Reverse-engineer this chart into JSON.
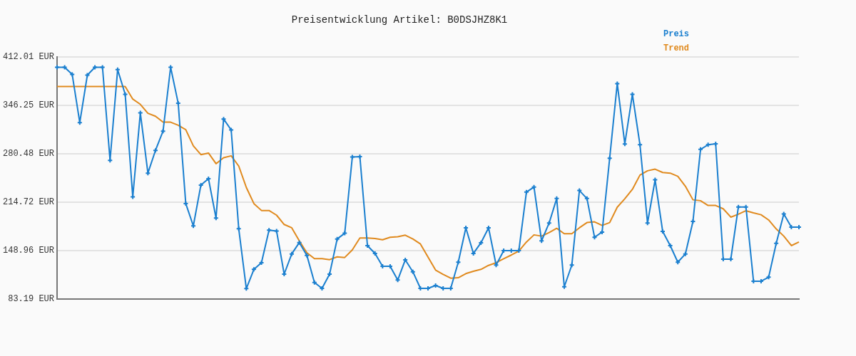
{
  "chart_data": {
    "type": "line",
    "title": "Preisentwicklung Artikel: B0DSJHZ8K1",
    "categories": [
      null,
      null,
      null,
      null,
      null,
      null,
      null,
      null,
      null,
      null,
      null,
      null,
      null,
      null,
      null,
      null,
      null,
      null,
      null,
      null,
      null,
      null,
      null,
      null,
      null,
      null,
      null,
      null,
      null,
      null,
      null,
      null,
      null,
      null,
      null,
      null,
      null,
      null,
      null,
      null,
      null,
      null,
      null,
      null,
      null,
      null,
      null,
      null,
      null,
      null,
      null,
      null,
      null,
      null,
      null,
      null,
      null,
      null,
      null,
      null,
      null,
      null,
      null,
      null,
      null,
      null,
      null,
      null,
      null,
      null,
      null,
      null,
      null,
      null,
      null,
      null,
      null,
      null,
      null,
      null,
      null,
      null,
      null,
      null,
      null,
      null,
      null,
      null,
      null,
      null,
      null,
      null,
      null,
      null,
      null,
      null,
      null,
      null,
      null
    ],
    "series": [
      {
        "name": "Preis",
        "color": "#1a7fcf",
        "marker": "cross",
        "values": [
          397.8,
          397.8,
          388.1,
          322.7,
          387.2,
          397.8,
          397.8,
          271.5,
          394.6,
          361.0,
          221.8,
          335.9,
          254.1,
          285.0,
          311.1,
          397.8,
          349.1,
          212.8,
          182.5,
          237.9,
          246.6,
          193.1,
          327.6,
          312.7,
          178.6,
          97.4,
          123.5,
          132.5,
          176.7,
          175.4,
          117.0,
          144.4,
          159.9,
          142.5,
          105.7,
          97.7,
          117.0,
          164.7,
          172.5,
          275.9,
          276.6,
          155.7,
          145.1,
          127.7,
          127.7,
          109.0,
          136.4,
          120.2,
          97.7,
          97.7,
          101.6,
          97.7,
          97.7,
          133.2,
          179.9,
          145.1,
          159.6,
          179.9,
          129.3,
          148.9,
          148.9,
          148.9,
          228.3,
          235.3,
          162.2,
          186.4,
          219.6,
          99.9,
          129.3,
          230.5,
          219.6,
          167.0,
          174.1,
          274.4,
          375.6,
          293.7,
          361.0,
          292.7,
          186.4,
          245.0,
          175.1,
          155.7,
          133.2,
          144.4,
          188.6,
          286.3,
          292.7,
          294.0,
          137.3,
          137.3,
          208.2,
          208.2,
          107.4,
          107.4,
          112.9,
          158.9,
          198.6,
          180.9,
          180.9
        ]
      },
      {
        "name": "Trend",
        "color": "#e08a1e",
        "marker": "none",
        "values": [
          371.7,
          371.7,
          371.7,
          371.7,
          371.7,
          371.7,
          371.7,
          371.7,
          371.7,
          371.7,
          354.6,
          347.5,
          335.3,
          331.4,
          323.3,
          323.3,
          319.2,
          313.1,
          291.1,
          279.2,
          281.4,
          266.9,
          275.0,
          277.6,
          263.7,
          234.7,
          212.8,
          203.4,
          203.4,
          197.0,
          184.4,
          179.9,
          162.2,
          146.0,
          138.0,
          138.0,
          136.7,
          140.5,
          139.6,
          149.9,
          166.1,
          166.1,
          165.4,
          163.7,
          167.0,
          167.7,
          169.9,
          164.7,
          157.9,
          140.2,
          122.5,
          116.7,
          111.5,
          112.1,
          117.7,
          120.9,
          123.5,
          128.9,
          132.5,
          138.0,
          142.9,
          148.3,
          160.6,
          170.3,
          168.6,
          173.4,
          179.2,
          171.9,
          171.9,
          179.9,
          187.0,
          188.0,
          183.1,
          187.0,
          207.9,
          219.3,
          232.1,
          251.5,
          257.3,
          259.5,
          255.0,
          254.1,
          249.8,
          236.3,
          217.9,
          216.7,
          210.2,
          210.2,
          205.7,
          194.4,
          198.3,
          203.1,
          200.2,
          197.6,
          190.5,
          178.3,
          168.6,
          155.7,
          160.6
        ]
      }
    ],
    "ylim": [
      83.19,
      412.01
    ],
    "yticks": [
      {
        "value": 83.19,
        "label": "83.19 EUR"
      },
      {
        "value": 148.96,
        "label": "148.96 EUR"
      },
      {
        "value": 214.72,
        "label": "214.72 EUR"
      },
      {
        "value": 280.48,
        "label": "280.48 EUR"
      },
      {
        "value": 346.25,
        "label": "346.25 EUR"
      },
      {
        "value": 412.01,
        "label": "412.01 EUR"
      }
    ],
    "grid": "y",
    "legend": "top right",
    "tick_labels": "y"
  }
}
